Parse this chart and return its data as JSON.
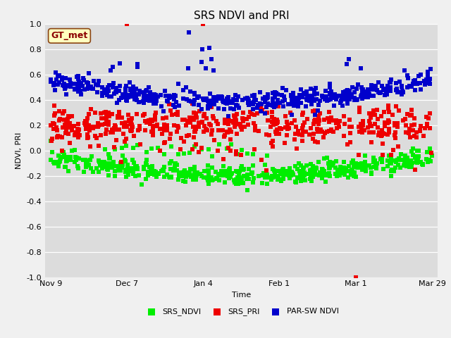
{
  "title": "SRS NDVI and PRI",
  "xlabel": "Time",
  "ylabel": "NDVI, PRI",
  "ylim": [
    -1.0,
    1.0
  ],
  "plot_bg": "#dcdcdc",
  "fig_bg": "#f0f0f0",
  "annotation_label": "GT_met",
  "annotation_color": "#8B0000",
  "annotation_bg": "#ffffc0",
  "annotation_edge": "#8B4513",
  "series": {
    "SRS_NDVI": {
      "color": "#00ee00",
      "marker": "s",
      "ms": 4,
      "label": "SRS_NDVI"
    },
    "SRS_PRI": {
      "color": "#ee0000",
      "marker": "s",
      "ms": 4,
      "label": "SRS_PRI"
    },
    "PAR_SW": {
      "color": "#0000cc",
      "marker": "s",
      "ms": 4,
      "label": "PAR-SW NDVI"
    }
  },
  "xtick_labels": [
    "Nov 9",
    "Dec 7",
    "Jan 4",
    "Feb 1",
    "Mar 1",
    "Mar 29"
  ],
  "xtick_pos": [
    0,
    28,
    56,
    84,
    112,
    140
  ],
  "total_days": 140,
  "title_fontsize": 11,
  "tick_fontsize": 8,
  "label_fontsize": 8,
  "legend_fontsize": 8
}
